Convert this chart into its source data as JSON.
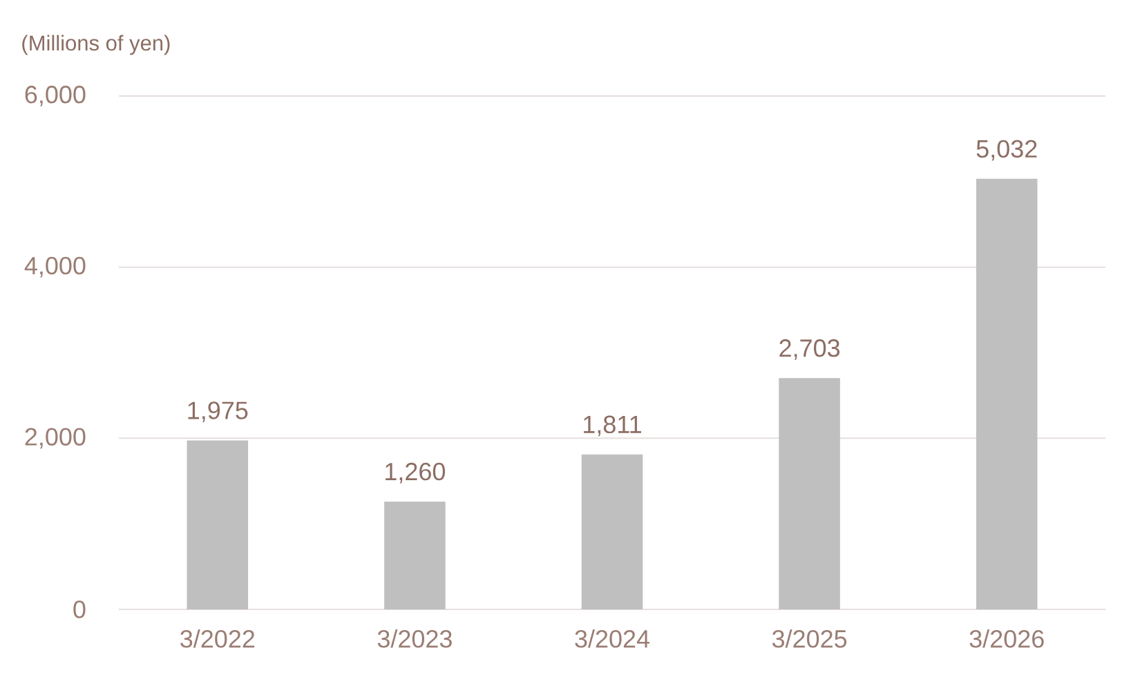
{
  "chart_data": {
    "type": "bar",
    "ylabel": "(Millions of yen)",
    "categories": [
      "3/2022",
      "3/2023",
      "3/2024",
      "3/2025",
      "3/2026"
    ],
    "values": [
      1975,
      1260,
      1811,
      2703,
      5032
    ],
    "value_labels": [
      "1,975",
      "1,260",
      "1,811",
      "2,703",
      "5,032"
    ],
    "color": "#bfbfbf",
    "ylim": [
      0,
      6000
    ],
    "yticks": [
      {
        "value": 0,
        "label": "0"
      },
      {
        "value": 2000,
        "label": "2,000"
      },
      {
        "value": 4000,
        "label": "4,000"
      },
      {
        "value": 6000,
        "label": "6,000"
      }
    ],
    "grid": "y"
  }
}
